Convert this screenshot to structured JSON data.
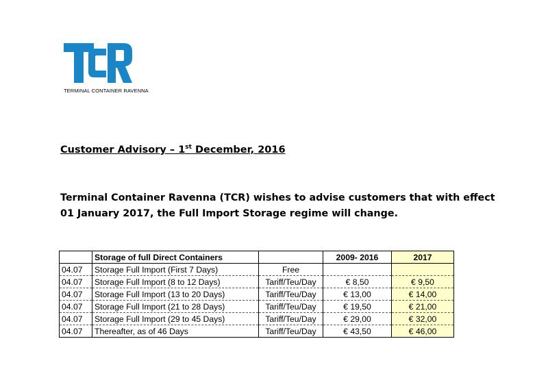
{
  "logo": {
    "caption": "TERMINAL CONTAINER RAVENNA",
    "color": "#1a86c8"
  },
  "heading": {
    "main": "Customer Advisory – 1",
    "sup": "st",
    "rest": " December, 2016"
  },
  "intro": {
    "text": "Terminal Container Ravenna (TCR) wishes to advise customers that with effect 01 January 2017, the Full Import Storage regime will change."
  },
  "table": {
    "headers": {
      "code": "",
      "description": "Storage of full Direct Containers",
      "unit": "",
      "old_period": "2009- 2016",
      "new_period": "2017"
    },
    "rows": [
      {
        "code": "04.07",
        "description": "Storage Full Import (First 7 Days)",
        "unit": "Free",
        "old": "",
        "new": ""
      },
      {
        "code": "04.07",
        "description": "Storage Full Import (8 to 12 Days)",
        "unit": "Tariff/Teu/Day",
        "old": "€ 8,50",
        "new": "€ 9,50"
      },
      {
        "code": "04.07",
        "description": "Storage Full Import (13 to 20 Days)",
        "unit": "Tariff/Teu/Day",
        "old": "€ 13,00",
        "new": "€ 14,00"
      },
      {
        "code": "04.07",
        "description": "Storage Full Import (21 to 28 Days)",
        "unit": "Tariff/Teu/Day",
        "old": "€ 19,50",
        "new": "€ 21,00"
      },
      {
        "code": "04.07",
        "description": "Storage Full Import (29 to 45 Days)",
        "unit": "Tariff/Teu/Day",
        "old": "€ 29,00",
        "new": "€ 32,00"
      },
      {
        "code": "04.07",
        "description": "Thereafter, as of 46 Days",
        "unit": "Tariff/Teu/Day",
        "old": "€ 43,50",
        "new": "€ 46,00"
      }
    ],
    "highlight_color": "#ffffcc"
  }
}
